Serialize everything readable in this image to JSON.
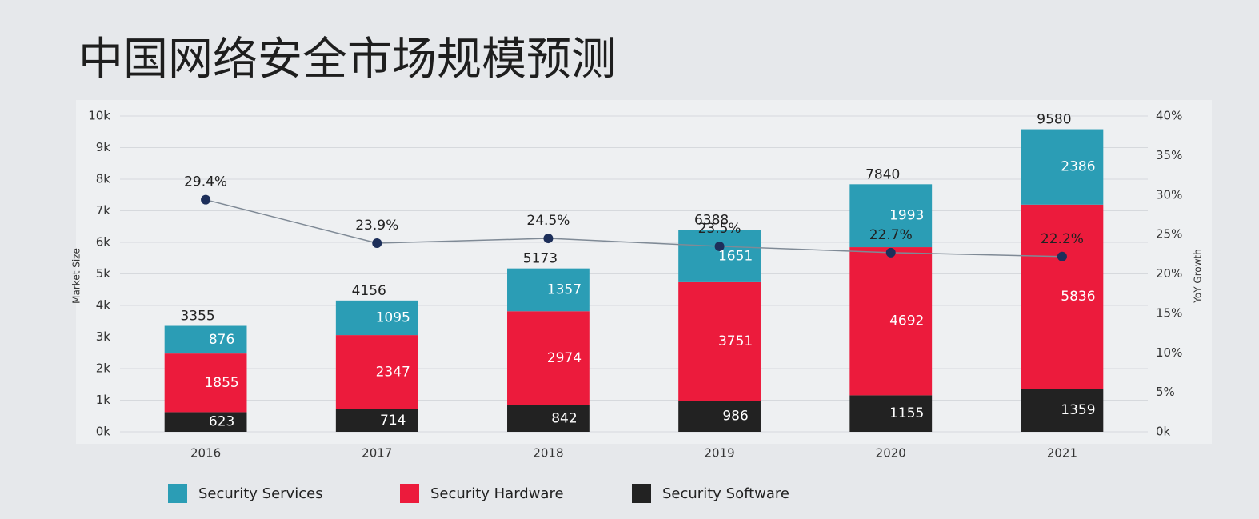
{
  "chart_data": {
    "type": "bar",
    "stacked": true,
    "title": "中国网络安全市场规模预测",
    "ylabel": "Market Size",
    "y2label": "YoY Growth",
    "categories": [
      "2016",
      "2017",
      "2018",
      "2019",
      "2020",
      "2021"
    ],
    "series": [
      {
        "name": "Security Services",
        "color": "#2b9db5",
        "values": [
          876,
          1095,
          1357,
          1651,
          1993,
          2386
        ]
      },
      {
        "name": "Security Hardware",
        "color": "#ec1b3c",
        "values": [
          1855,
          2347,
          2974,
          3751,
          4692,
          5836
        ]
      },
      {
        "name": "Security Software",
        "color": "#222222",
        "values": [
          623,
          714,
          842,
          986,
          1155,
          1359
        ]
      }
    ],
    "totals": [
      3355,
      4156,
      5173,
      6388,
      7840,
      9580
    ],
    "line": {
      "type": "line",
      "axis": "y2",
      "color": "#7f8a96",
      "marker_color": "#1d2f5a",
      "values": [
        29.4,
        23.9,
        24.5,
        23.5,
        22.7,
        22.2
      ],
      "value_labels": [
        "29.4%",
        "23.9%",
        "24.5%",
        "23.5%",
        "22.7%",
        "22.2%"
      ]
    },
    "ylim": [
      0,
      10000
    ],
    "yticks": [
      {
        "value": 0,
        "label": "0k"
      },
      {
        "value": 1000,
        "label": "1k"
      },
      {
        "value": 2000,
        "label": "2k"
      },
      {
        "value": 3000,
        "label": "3k"
      },
      {
        "value": 4000,
        "label": "4k"
      },
      {
        "value": 5000,
        "label": "5k"
      },
      {
        "value": 6000,
        "label": "6k"
      },
      {
        "value": 7000,
        "label": "7k"
      },
      {
        "value": 8000,
        "label": "8k"
      },
      {
        "value": 9000,
        "label": "9k"
      },
      {
        "value": 10000,
        "label": "10k"
      }
    ],
    "y2lim": [
      0,
      40
    ],
    "y2ticks": [
      {
        "value": 0,
        "label": "0k"
      },
      {
        "value": 5,
        "label": "5%"
      },
      {
        "value": 10,
        "label": "10%"
      },
      {
        "value": 15,
        "label": "15%"
      },
      {
        "value": 20,
        "label": "20%"
      },
      {
        "value": 25,
        "label": "25%"
      },
      {
        "value": 30,
        "label": "30%"
      },
      {
        "value": 35,
        "label": "35%"
      },
      {
        "value": 40,
        "label": "40%"
      }
    ],
    "grid": true
  }
}
